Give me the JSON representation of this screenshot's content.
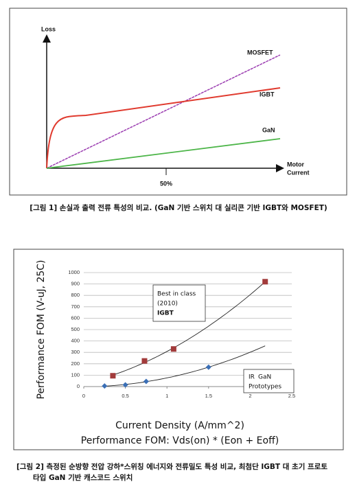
{
  "figure1": {
    "y_label": "Loss",
    "x_label": [
      "Motor",
      "Current"
    ],
    "x_tick": "50%",
    "curves": [
      "MOSFET",
      "IGBT",
      "GaN"
    ],
    "caption": "[그림 1] 손실과 출력 전류 특성의 비교. (GaN 기반 스위치 대 실리콘 기반 IGBT와 MOSFET)"
  },
  "chart_data": {
    "type": "scatter",
    "y_label": "Performance FOM (V-uJ, 25C)",
    "x_label": "Current Density (A/mm^2)",
    "subtitle": "Performance FOM: Vds(on) * (Eon + Eoff)",
    "annotations": [
      "Best in class",
      "(2010)",
      "IR",
      "Prototypes"
    ],
    "series": [
      {
        "name": "IGBT",
        "color": "#a23b3b",
        "marker": "square",
        "x": [
          0.35,
          0.73,
          1.08,
          2.18
        ],
        "values": [
          95,
          225,
          330,
          920
        ]
      },
      {
        "name": "GaN",
        "color": "#3b6fb6",
        "marker": "diamond",
        "x": [
          0.25,
          0.5,
          0.75,
          1.5
        ],
        "values": [
          5,
          15,
          45,
          170
        ]
      }
    ],
    "xlim": [
      0,
      2.5
    ],
    "xticks": [
      0,
      0.5,
      1,
      1.5,
      2,
      2.5
    ],
    "ylim": [
      0,
      1000
    ],
    "yticks": [
      0,
      100,
      200,
      300,
      400,
      500,
      600,
      700,
      800,
      900,
      1000
    ],
    "grid": true,
    "trendline": true,
    "caption": [
      "[그림 2] 측정된 순방향 전압 강하*스위칭 에너지와 전류밀도 특성 비교, 최첨단 IGBT 대 초기 프로토",
      "타입 GaN 기반 캐스코드 스위치"
    ]
  }
}
